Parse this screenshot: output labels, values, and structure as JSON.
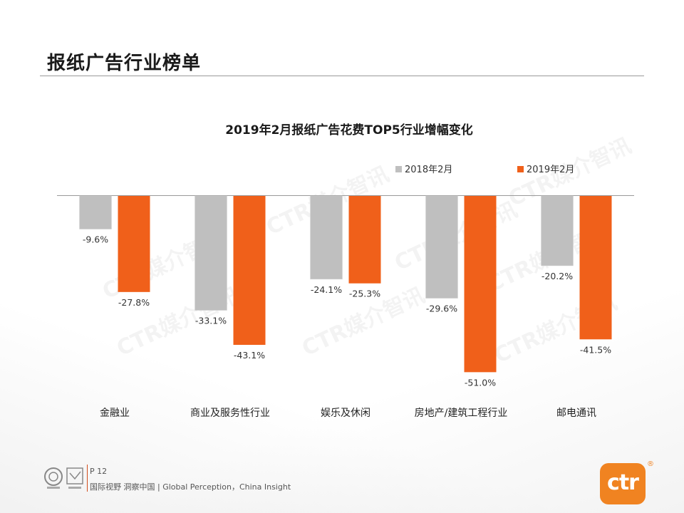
{
  "page": {
    "title": "报纸广告行业榜单"
  },
  "chart_data": {
    "type": "bar",
    "title": "2019年2月报纸广告花费TOP5行业增幅变化",
    "categories": [
      "金融业",
      "商业及服务性行业",
      "娱乐及休闲",
      "房地产/建筑工程行业",
      "邮电通讯"
    ],
    "series": [
      {
        "name": "2018年2月",
        "values": [
          -9.6,
          -33.1,
          -24.1,
          -29.6,
          -20.2
        ],
        "labels": [
          "-9.6%",
          "-33.1%",
          "-24.1%",
          "-29.6%",
          "-20.2%"
        ]
      },
      {
        "name": "2019年2月",
        "values": [
          -27.8,
          -43.1,
          -25.3,
          -51.0,
          -41.5
        ],
        "labels": [
          "-27.8%",
          "-43.1%",
          "-25.3%",
          "-51.0%",
          "-41.5%"
        ]
      }
    ],
    "ylim": [
      -55,
      0
    ],
    "legend_position": "top-right",
    "grid": false,
    "unit": "%"
  },
  "colors": {
    "series_2018": "#bfbfbf",
    "series_2019": "#f0601a",
    "brand": "#f08321",
    "accent_rule": "#d24d1d"
  },
  "watermark": "CTR媒介智讯",
  "footer": {
    "page_label": "P 12",
    "slogan": "国际视野 洞察中国 | Global Perception，China Insight",
    "logo_text": "ctr",
    "reg_mark": "®",
    "cert_icon": "certification-badges-icon"
  }
}
